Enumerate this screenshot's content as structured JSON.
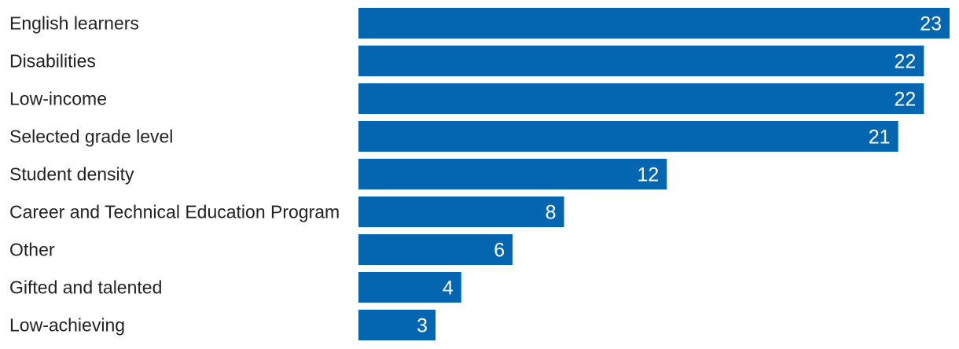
{
  "chart_data": {
    "type": "bar",
    "orientation": "horizontal",
    "title": "",
    "xlabel": "",
    "ylabel": "",
    "categories": [
      "English learners",
      "Disabilities",
      "Low-income",
      "Selected grade level",
      "Student density",
      "Career and Technical Education Program",
      "Other",
      "Gifted and talented",
      "Low-achieving"
    ],
    "values": [
      23,
      22,
      22,
      21,
      12,
      8,
      6,
      4,
      3
    ],
    "xlim": [
      0,
      23
    ],
    "grid": false,
    "legend": "none",
    "bar_color": "#0466B1",
    "value_label_color": "#ffffff"
  }
}
